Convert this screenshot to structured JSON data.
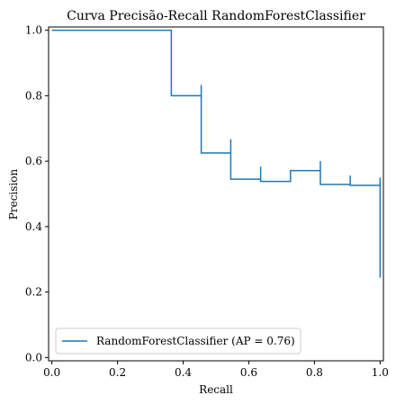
{
  "chart_data": {
    "type": "line",
    "title": "Curva Precisão-Recall RandomForestClassifier",
    "xlabel": "Recall",
    "ylabel": "Precision",
    "xlim": [
      -0.01,
      1.01
    ],
    "ylim": [
      -0.01,
      1.01
    ],
    "xticks": [
      0.0,
      0.2,
      0.4,
      0.6,
      0.8,
      1.0
    ],
    "xtick_labels": [
      "0.0",
      "0.2",
      "0.4",
      "0.6",
      "0.8",
      "1.0"
    ],
    "yticks": [
      0.0,
      0.2,
      0.4,
      0.6,
      0.8,
      1.0
    ],
    "ytick_labels": [
      "0.0",
      "0.2",
      "0.4",
      "0.6",
      "0.8",
      "1.0"
    ],
    "grid": false,
    "legend_position": "lower-left",
    "drawstyle": "steps-post",
    "series": [
      {
        "name": "RandomForestClassifier (AP = 0.76)",
        "color": "#1f77b4",
        "recall": [
          0.0,
          0.364,
          0.364,
          0.455,
          0.455,
          0.545,
          0.545,
          0.636,
          0.636,
          0.727,
          0.818,
          0.818,
          0.909,
          0.909,
          1.0,
          1.0
        ],
        "precision": [
          1.0,
          1.0,
          0.8,
          0.833,
          0.625,
          0.667,
          0.545,
          0.583,
          0.538,
          0.571,
          0.6,
          0.529,
          0.556,
          0.526,
          0.55,
          0.244
        ]
      }
    ]
  }
}
